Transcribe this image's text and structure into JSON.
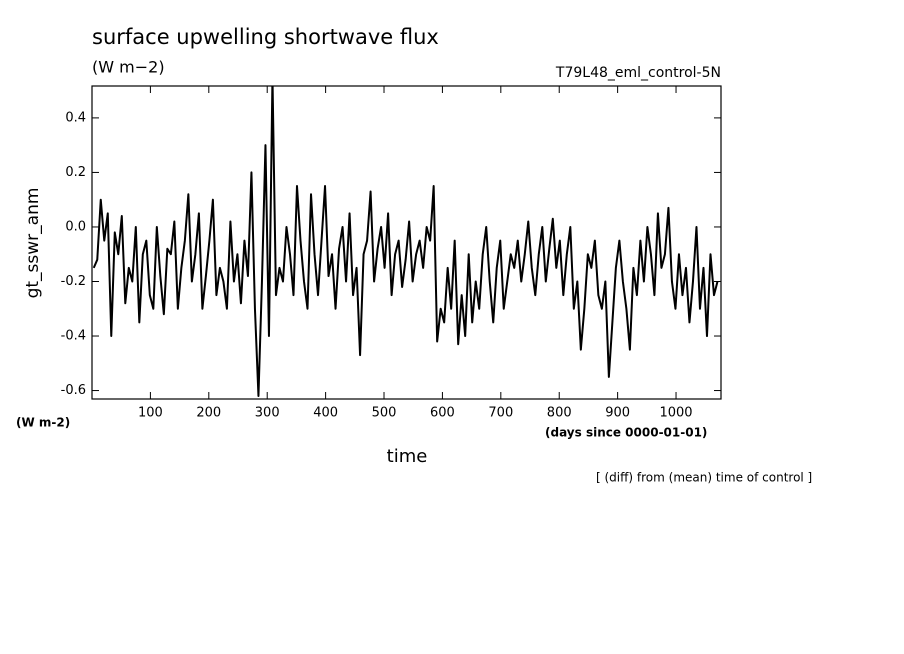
{
  "chart_data": {
    "type": "line",
    "title": "surface upwelling shortwave flux",
    "subtitle": "(W m−2)",
    "run_label": "T79L48_eml_control-5N",
    "ylabel": "gt_sswr_anm",
    "yunits": "(W m-2)",
    "xlabel": "time",
    "xunits": "(days since 0000-01-01)",
    "note": "[ (diff) from (mean) time of control ]",
    "color": "#000000",
    "xlim": [
      0,
      1077
    ],
    "ylim": [
      -0.631,
      0.517
    ],
    "xticks": [
      100,
      200,
      300,
      400,
      500,
      600,
      700,
      800,
      900,
      1000
    ],
    "yticks": [
      -0.6,
      -0.4,
      -0.2,
      {
        "value": 0,
        "label": "0.0"
      },
      0.2,
      0.4
    ],
    "x": [
      3,
      9,
      15,
      21,
      27,
      33,
      39,
      45,
      51,
      57,
      63,
      69,
      75,
      81,
      87,
      93,
      99,
      105,
      111,
      117,
      123,
      129,
      135,
      141,
      147,
      153,
      159,
      165,
      171,
      177,
      183,
      189,
      195,
      201,
      207,
      213,
      219,
      225,
      231,
      237,
      243,
      249,
      255,
      261,
      267,
      273,
      279,
      285,
      291,
      297,
      303,
      309,
      315,
      321,
      327,
      333,
      339,
      345,
      351,
      357,
      363,
      369,
      375,
      381,
      387,
      393,
      399,
      405,
      411,
      417,
      423,
      429,
      435,
      441,
      447,
      453,
      459,
      465,
      471,
      477,
      483,
      489,
      495,
      501,
      507,
      513,
      519,
      525,
      531,
      537,
      543,
      549,
      555,
      561,
      567,
      573,
      579,
      585,
      591,
      597,
      603,
      609,
      615,
      621,
      627,
      633,
      639,
      645,
      651,
      657,
      663,
      669,
      675,
      681,
      687,
      693,
      699,
      705,
      711,
      717,
      723,
      729,
      735,
      741,
      747,
      753,
      759,
      765,
      771,
      777,
      783,
      789,
      795,
      801,
      807,
      813,
      819,
      825,
      831,
      837,
      843,
      849,
      855,
      861,
      867,
      873,
      879,
      885,
      891,
      897,
      903,
      909,
      915,
      921,
      927,
      933,
      939,
      945,
      951,
      957,
      963,
      969,
      975,
      981,
      987,
      993,
      999,
      1005,
      1011,
      1017,
      1023,
      1029,
      1035,
      1041,
      1047,
      1053,
      1059,
      1065,
      1071
    ],
    "values": [
      -0.15,
      -0.12,
      0.1,
      -0.05,
      0.05,
      -0.4,
      -0.02,
      -0.1,
      0.04,
      -0.28,
      -0.15,
      -0.2,
      0.0,
      -0.35,
      -0.1,
      -0.05,
      -0.25,
      -0.3,
      0.0,
      -0.18,
      -0.32,
      -0.08,
      -0.1,
      0.02,
      -0.3,
      -0.15,
      -0.05,
      0.12,
      -0.2,
      -0.1,
      0.05,
      -0.3,
      -0.18,
      -0.05,
      0.1,
      -0.25,
      -0.15,
      -0.2,
      -0.3,
      0.02,
      -0.2,
      -0.1,
      -0.28,
      -0.05,
      -0.18,
      0.2,
      -0.3,
      -0.62,
      -0.2,
      0.3,
      -0.4,
      0.55,
      -0.25,
      -0.15,
      -0.2,
      0.0,
      -0.1,
      -0.25,
      0.15,
      -0.05,
      -0.2,
      -0.3,
      0.12,
      -0.1,
      -0.25,
      -0.05,
      0.15,
      -0.18,
      -0.1,
      -0.3,
      -0.08,
      0.0,
      -0.2,
      0.05,
      -0.25,
      -0.15,
      -0.47,
      -0.1,
      -0.05,
      0.13,
      -0.2,
      -0.08,
      0.0,
      -0.15,
      0.05,
      -0.25,
      -0.1,
      -0.05,
      -0.22,
      -0.12,
      0.02,
      -0.2,
      -0.1,
      -0.05,
      -0.15,
      0.0,
      -0.05,
      0.15,
      -0.42,
      -0.3,
      -0.35,
      -0.15,
      -0.3,
      -0.05,
      -0.43,
      -0.25,
      -0.4,
      -0.1,
      -0.35,
      -0.2,
      -0.3,
      -0.1,
      0.0,
      -0.2,
      -0.35,
      -0.15,
      -0.05,
      -0.3,
      -0.2,
      -0.1,
      -0.15,
      -0.05,
      -0.2,
      -0.1,
      0.02,
      -0.15,
      -0.25,
      -0.1,
      0.0,
      -0.2,
      -0.08,
      0.03,
      -0.15,
      -0.05,
      -0.25,
      -0.1,
      0.0,
      -0.3,
      -0.2,
      -0.45,
      -0.3,
      -0.1,
      -0.15,
      -0.05,
      -0.25,
      -0.3,
      -0.2,
      -0.55,
      -0.35,
      -0.15,
      -0.05,
      -0.2,
      -0.3,
      -0.45,
      -0.15,
      -0.25,
      -0.05,
      -0.2,
      0.0,
      -0.1,
      -0.25,
      0.05,
      -0.15,
      -0.1,
      0.07,
      -0.2,
      -0.3,
      -0.1,
      -0.25,
      -0.15,
      -0.35,
      -0.2,
      0.0,
      -0.3,
      -0.15,
      -0.4,
      -0.1,
      -0.25,
      -0.2
    ]
  }
}
